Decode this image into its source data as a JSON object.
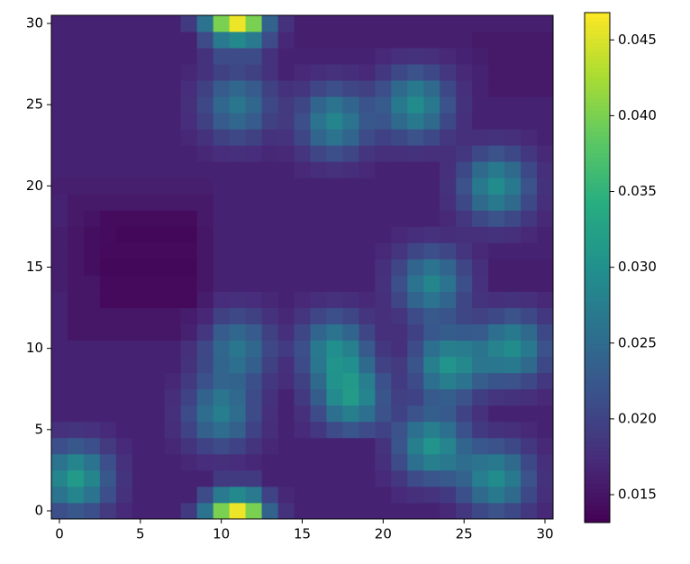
{
  "chart_data": {
    "type": "heatmap",
    "colormap": "viridis",
    "xlim": [
      -0.5,
      30.5
    ],
    "ylim": [
      -0.5,
      30.5
    ],
    "xticks": [
      0,
      5,
      10,
      15,
      20,
      25,
      30
    ],
    "yticks": [
      0,
      5,
      10,
      15,
      20,
      25,
      30
    ],
    "clim": [
      0.01316,
      0.0468
    ],
    "cticks": [
      0.015,
      {
        "value": 0.02,
        "label": "0.020"
      },
      0.025,
      {
        "value": 0.03,
        "label": "0.030"
      },
      0.035,
      {
        "value": 0.04,
        "label": "0.040"
      },
      0.045
    ],
    "z": [
      [
        0.0213,
        0.0225,
        0.0213,
        0.0189,
        0.0172,
        0.0165,
        0.0165,
        0.0165,
        0.019,
        0.026,
        0.04,
        0.046,
        0.04,
        0.024,
        0.018,
        0.0165,
        0.0165,
        0.0165,
        0.0165,
        0.0165,
        0.0165,
        0.0165,
        0.0165,
        0.0165,
        0.0171,
        0.0186,
        0.0207,
        0.0217,
        0.0207,
        0.0186,
        0.0171
      ],
      [
        0.0261,
        0.0285,
        0.0261,
        0.0213,
        0.0179,
        0.0165,
        0.0165,
        0.0165,
        0.0165,
        0.021,
        0.027,
        0.029,
        0.027,
        0.02,
        0.017,
        0.0165,
        0.0165,
        0.0165,
        0.0165,
        0.0165,
        0.0165,
        0.0172,
        0.0178,
        0.0182,
        0.019,
        0.0214,
        0.0248,
        0.0269,
        0.0248,
        0.0207,
        0.0177
      ],
      [
        0.0285,
        0.0315,
        0.0285,
        0.0225,
        0.0183,
        0.0165,
        0.0165,
        0.0165,
        0.0165,
        0.0165,
        0.019,
        0.019,
        0.019,
        0.0165,
        0.0165,
        0.0165,
        0.0165,
        0.0165,
        0.0165,
        0.0165,
        0.0172,
        0.0187,
        0.021,
        0.0221,
        0.0226,
        0.0239,
        0.0276,
        0.0295,
        0.0269,
        0.0217,
        0.0181
      ],
      [
        0.0261,
        0.0285,
        0.0261,
        0.0213,
        0.0179,
        0.0165,
        0.0165,
        0.0165,
        0.017,
        0.0175,
        0.0178,
        0.0175,
        0.017,
        0.0165,
        0.0165,
        0.0165,
        0.0165,
        0.0165,
        0.0165,
        0.0165,
        0.0178,
        0.021,
        0.0255,
        0.0277,
        0.0267,
        0.0252,
        0.0261,
        0.0269,
        0.0248,
        0.0207,
        0.0177
      ],
      [
        0.0213,
        0.0225,
        0.0213,
        0.0189,
        0.0172,
        0.0165,
        0.0165,
        0.017,
        0.0183,
        0.02,
        0.0209,
        0.02,
        0.0183,
        0.017,
        0.0165,
        0.0165,
        0.0165,
        0.0165,
        0.0165,
        0.0165,
        0.0182,
        0.0221,
        0.0277,
        0.0305,
        0.0283,
        0.0242,
        0.0224,
        0.0217,
        0.0207,
        0.0186,
        0.0171
      ],
      [
        0.0179,
        0.0183,
        0.0179,
        0.0172,
        0.0165,
        0.0165,
        0.0165,
        0.0176,
        0.02,
        0.0235,
        0.0253,
        0.0235,
        0.02,
        0.0176,
        0.0165,
        0.0172,
        0.0187,
        0.021,
        0.0221,
        0.021,
        0.02,
        0.0217,
        0.0255,
        0.0277,
        0.0255,
        0.0216,
        0.019,
        0.0181,
        0.0177,
        0.0171,
        0.0165
      ],
      [
        0.0165,
        0.0165,
        0.0165,
        0.0165,
        0.0165,
        0.0165,
        0.0165,
        0.0178,
        0.0209,
        0.0253,
        0.0275,
        0.0253,
        0.0209,
        0.0178,
        0.0165,
        0.0178,
        0.021,
        0.0255,
        0.0277,
        0.0255,
        0.0217,
        0.02,
        0.0217,
        0.0234,
        0.0227,
        0.02,
        0.0179,
        0.0165,
        0.0165,
        0.0165,
        0.0165
      ],
      [
        0.0165,
        0.0165,
        0.0165,
        0.0165,
        0.0165,
        0.0165,
        0.0165,
        0.0176,
        0.02,
        0.024,
        0.0263,
        0.0247,
        0.021,
        0.0181,
        0.0165,
        0.0188,
        0.0232,
        0.0291,
        0.0316,
        0.0283,
        0.0221,
        0.0196,
        0.02,
        0.0227,
        0.0234,
        0.0217,
        0.0193,
        0.0184,
        0.0181,
        0.0177,
        0.0171
      ],
      [
        0.0165,
        0.0165,
        0.0165,
        0.0165,
        0.0165,
        0.0165,
        0.0165,
        0.017,
        0.0188,
        0.0216,
        0.0241,
        0.024,
        0.0215,
        0.0186,
        0.0176,
        0.0197,
        0.0248,
        0.0303,
        0.0315,
        0.0274,
        0.0216,
        0.0191,
        0.021,
        0.0255,
        0.0277,
        0.0261,
        0.0231,
        0.022,
        0.0217,
        0.0207,
        0.0186
      ],
      [
        0.0165,
        0.0165,
        0.0165,
        0.0165,
        0.0165,
        0.0165,
        0.0165,
        0.0165,
        0.018,
        0.0207,
        0.0242,
        0.0255,
        0.0234,
        0.0197,
        0.0177,
        0.021,
        0.0264,
        0.0306,
        0.0298,
        0.0248,
        0.0199,
        0.0189,
        0.0221,
        0.0277,
        0.0305,
        0.0289,
        0.0263,
        0.0265,
        0.0269,
        0.0248,
        0.0207
      ],
      [
        0.0165,
        0.0165,
        0.0165,
        0.0165,
        0.0165,
        0.0165,
        0.0165,
        0.0165,
        0.0177,
        0.0205,
        0.0245,
        0.0265,
        0.0245,
        0.0205,
        0.0191,
        0.0213,
        0.0268,
        0.0298,
        0.0278,
        0.0226,
        0.0186,
        0.0178,
        0.021,
        0.0255,
        0.0277,
        0.0271,
        0.0262,
        0.0282,
        0.0295,
        0.0269,
        0.0217
      ],
      [
        0.0165,
        0.0153,
        0.0153,
        0.0153,
        0.0153,
        0.0153,
        0.0153,
        0.0153,
        0.0163,
        0.0185,
        0.0229,
        0.0245,
        0.0229,
        0.0197,
        0.0177,
        0.0203,
        0.0242,
        0.0261,
        0.0242,
        0.0203,
        0.0177,
        0.0178,
        0.0198,
        0.0224,
        0.0232,
        0.0228,
        0.0229,
        0.0255,
        0.0269,
        0.0248,
        0.0207
      ],
      [
        0.0165,
        0.0153,
        0.0153,
        0.0153,
        0.0153,
        0.0153,
        0.0153,
        0.0153,
        0.0158,
        0.0169,
        0.0197,
        0.0205,
        0.0197,
        0.0181,
        0.017,
        0.0184,
        0.0203,
        0.0213,
        0.0203,
        0.0184,
        0.0177,
        0.0184,
        0.021,
        0.0226,
        0.022,
        0.0203,
        0.0199,
        0.0207,
        0.0217,
        0.0207,
        0.0186
      ],
      [
        0.0165,
        0.0153,
        0.0153,
        0.014,
        0.014,
        0.014,
        0.014,
        0.014,
        0.014,
        0.0158,
        0.0175,
        0.0177,
        0.0175,
        0.017,
        0.0165,
        0.0171,
        0.0176,
        0.0179,
        0.0176,
        0.0171,
        0.0177,
        0.0203,
        0.0242,
        0.0261,
        0.0242,
        0.0203,
        0.0183,
        0.0177,
        0.0181,
        0.0177,
        0.0171
      ],
      [
        0.016,
        0.0153,
        0.0153,
        0.014,
        0.014,
        0.014,
        0.014,
        0.014,
        0.014,
        0.0153,
        0.0165,
        0.0165,
        0.0165,
        0.0165,
        0.0165,
        0.0165,
        0.0165,
        0.0165,
        0.0165,
        0.0165,
        0.0179,
        0.0213,
        0.0261,
        0.0285,
        0.0261,
        0.0213,
        0.0179,
        0.016,
        0.016,
        0.016,
        0.016
      ],
      [
        0.016,
        0.0153,
        0.0145,
        0.0138,
        0.0138,
        0.0138,
        0.0138,
        0.0138,
        0.0138,
        0.0153,
        0.0165,
        0.0165,
        0.0165,
        0.0165,
        0.0165,
        0.0165,
        0.0165,
        0.0165,
        0.0165,
        0.0165,
        0.0177,
        0.0203,
        0.0242,
        0.0261,
        0.0242,
        0.0203,
        0.0177,
        0.016,
        0.016,
        0.016,
        0.016
      ],
      [
        0.016,
        0.0153,
        0.0145,
        0.014,
        0.014,
        0.014,
        0.014,
        0.014,
        0.014,
        0.0153,
        0.0165,
        0.0165,
        0.0165,
        0.0165,
        0.0165,
        0.0165,
        0.0165,
        0.0165,
        0.0165,
        0.0165,
        0.0171,
        0.0184,
        0.0203,
        0.0213,
        0.0203,
        0.0184,
        0.0171,
        0.0165,
        0.0165,
        0.0165,
        0.0165
      ],
      [
        0.016,
        0.0153,
        0.0145,
        0.0142,
        0.0138,
        0.0138,
        0.0138,
        0.0138,
        0.0138,
        0.0153,
        0.0165,
        0.0165,
        0.0165,
        0.0165,
        0.0165,
        0.0165,
        0.0165,
        0.0165,
        0.0165,
        0.0165,
        0.0165,
        0.0171,
        0.0176,
        0.0179,
        0.0176,
        0.0177,
        0.0177,
        0.0181,
        0.0177,
        0.0171,
        0.0165
      ],
      [
        0.0165,
        0.0155,
        0.015,
        0.0142,
        0.0142,
        0.0142,
        0.0142,
        0.0142,
        0.0142,
        0.0155,
        0.0165,
        0.0165,
        0.0165,
        0.0165,
        0.0165,
        0.0165,
        0.0165,
        0.0165,
        0.0165,
        0.0165,
        0.0165,
        0.0165,
        0.0165,
        0.0165,
        0.0171,
        0.0186,
        0.0207,
        0.0217,
        0.0207,
        0.0186,
        0.0171
      ],
      [
        0.0165,
        0.0155,
        0.0155,
        0.0155,
        0.0155,
        0.0155,
        0.0155,
        0.0155,
        0.0155,
        0.0155,
        0.0165,
        0.0165,
        0.0165,
        0.0165,
        0.0165,
        0.0165,
        0.0165,
        0.0165,
        0.0165,
        0.0165,
        0.0165,
        0.0165,
        0.0165,
        0.0165,
        0.0177,
        0.0207,
        0.0248,
        0.0269,
        0.0248,
        0.0207,
        0.0177
      ],
      [
        0.0162,
        0.0162,
        0.0162,
        0.0162,
        0.0162,
        0.0162,
        0.0162,
        0.0162,
        0.0162,
        0.0162,
        0.0165,
        0.0165,
        0.0165,
        0.0165,
        0.0165,
        0.0165,
        0.0165,
        0.0165,
        0.0165,
        0.0165,
        0.0165,
        0.0165,
        0.0165,
        0.0165,
        0.0181,
        0.0217,
        0.0269,
        0.0295,
        0.0269,
        0.0217,
        0.0181
      ],
      [
        0.0165,
        0.0165,
        0.0165,
        0.0165,
        0.0165,
        0.0165,
        0.0165,
        0.0165,
        0.0165,
        0.0165,
        0.0165,
        0.0165,
        0.0165,
        0.0165,
        0.0165,
        0.0171,
        0.0176,
        0.0179,
        0.0176,
        0.0171,
        0.0165,
        0.0165,
        0.0165,
        0.0165,
        0.0177,
        0.0207,
        0.0248,
        0.0269,
        0.0248,
        0.0207,
        0.0177
      ],
      [
        0.0165,
        0.0165,
        0.0165,
        0.0165,
        0.0165,
        0.0165,
        0.0165,
        0.0165,
        0.0165,
        0.017,
        0.0175,
        0.0177,
        0.0175,
        0.017,
        0.0171,
        0.0184,
        0.0203,
        0.0213,
        0.0203,
        0.0184,
        0.0177,
        0.0177,
        0.0181,
        0.0177,
        0.0177,
        0.0186,
        0.0207,
        0.0217,
        0.0207,
        0.0186,
        0.0171
      ],
      [
        0.0165,
        0.0165,
        0.0165,
        0.0165,
        0.0165,
        0.0165,
        0.0165,
        0.0165,
        0.017,
        0.0181,
        0.0197,
        0.0205,
        0.0197,
        0.0181,
        0.0182,
        0.0203,
        0.0242,
        0.0261,
        0.0242,
        0.0209,
        0.0198,
        0.0207,
        0.0217,
        0.0207,
        0.0186,
        0.0177,
        0.0177,
        0.0181,
        0.0177,
        0.0171,
        0.0165
      ],
      [
        0.0165,
        0.0165,
        0.0165,
        0.0165,
        0.0165,
        0.0165,
        0.0165,
        0.0165,
        0.0175,
        0.0197,
        0.0229,
        0.0245,
        0.0229,
        0.0197,
        0.0189,
        0.0213,
        0.0261,
        0.0285,
        0.0261,
        0.0225,
        0.0221,
        0.0248,
        0.0269,
        0.0248,
        0.0207,
        0.0177,
        0.0165,
        0.0165,
        0.0165,
        0.0165,
        0.0165
      ],
      [
        0.0165,
        0.0165,
        0.0165,
        0.0165,
        0.0165,
        0.0165,
        0.0165,
        0.0165,
        0.0177,
        0.0205,
        0.0245,
        0.0265,
        0.0245,
        0.0205,
        0.0189,
        0.0203,
        0.0242,
        0.0261,
        0.0242,
        0.0219,
        0.0229,
        0.0269,
        0.0295,
        0.0269,
        0.0217,
        0.0181,
        0.0165,
        0.0165,
        0.0165,
        0.0165,
        0.0165
      ],
      [
        0.0165,
        0.0165,
        0.0165,
        0.0165,
        0.0165,
        0.0165,
        0.0165,
        0.0165,
        0.0175,
        0.0197,
        0.0229,
        0.0245,
        0.0229,
        0.0197,
        0.0181,
        0.0184,
        0.0203,
        0.0213,
        0.0203,
        0.0196,
        0.0213,
        0.0248,
        0.0269,
        0.0248,
        0.0207,
        0.0177,
        0.0165,
        0.0155,
        0.0155,
        0.0155,
        0.0155
      ],
      [
        0.0165,
        0.0165,
        0.0165,
        0.0165,
        0.0165,
        0.0165,
        0.0165,
        0.0165,
        0.017,
        0.0181,
        0.0197,
        0.0205,
        0.0197,
        0.0181,
        0.0165,
        0.0171,
        0.0176,
        0.0179,
        0.0176,
        0.0171,
        0.0186,
        0.0207,
        0.0217,
        0.0207,
        0.0186,
        0.0171,
        0.0165,
        0.0155,
        0.0155,
        0.0155,
        0.0155
      ],
      [
        0.0165,
        0.0165,
        0.0165,
        0.0165,
        0.0165,
        0.0165,
        0.0165,
        0.0165,
        0.0165,
        0.018,
        0.021,
        0.021,
        0.021,
        0.018,
        0.0165,
        0.0165,
        0.0165,
        0.0165,
        0.0165,
        0.0165,
        0.0171,
        0.0177,
        0.0181,
        0.0177,
        0.0171,
        0.0165,
        0.016,
        0.0155,
        0.0155,
        0.0155,
        0.0155
      ],
      [
        0.0165,
        0.0165,
        0.0165,
        0.0165,
        0.0165,
        0.0165,
        0.0165,
        0.0165,
        0.0165,
        0.021,
        0.027,
        0.029,
        0.027,
        0.021,
        0.017,
        0.0162,
        0.0162,
        0.0162,
        0.0162,
        0.0162,
        0.0162,
        0.0162,
        0.0162,
        0.0162,
        0.0162,
        0.0162,
        0.0155,
        0.0155,
        0.0155,
        0.0155,
        0.0155
      ],
      [
        0.0165,
        0.0165,
        0.0165,
        0.0165,
        0.0165,
        0.0165,
        0.0165,
        0.0165,
        0.019,
        0.026,
        0.04,
        0.046,
        0.04,
        0.024,
        0.018,
        0.0162,
        0.0162,
        0.0162,
        0.0162,
        0.0162,
        0.0162,
        0.0162,
        0.0162,
        0.0162,
        0.0162,
        0.0162,
        0.0162,
        0.0162,
        0.0162,
        0.0162,
        0.0162
      ]
    ]
  }
}
